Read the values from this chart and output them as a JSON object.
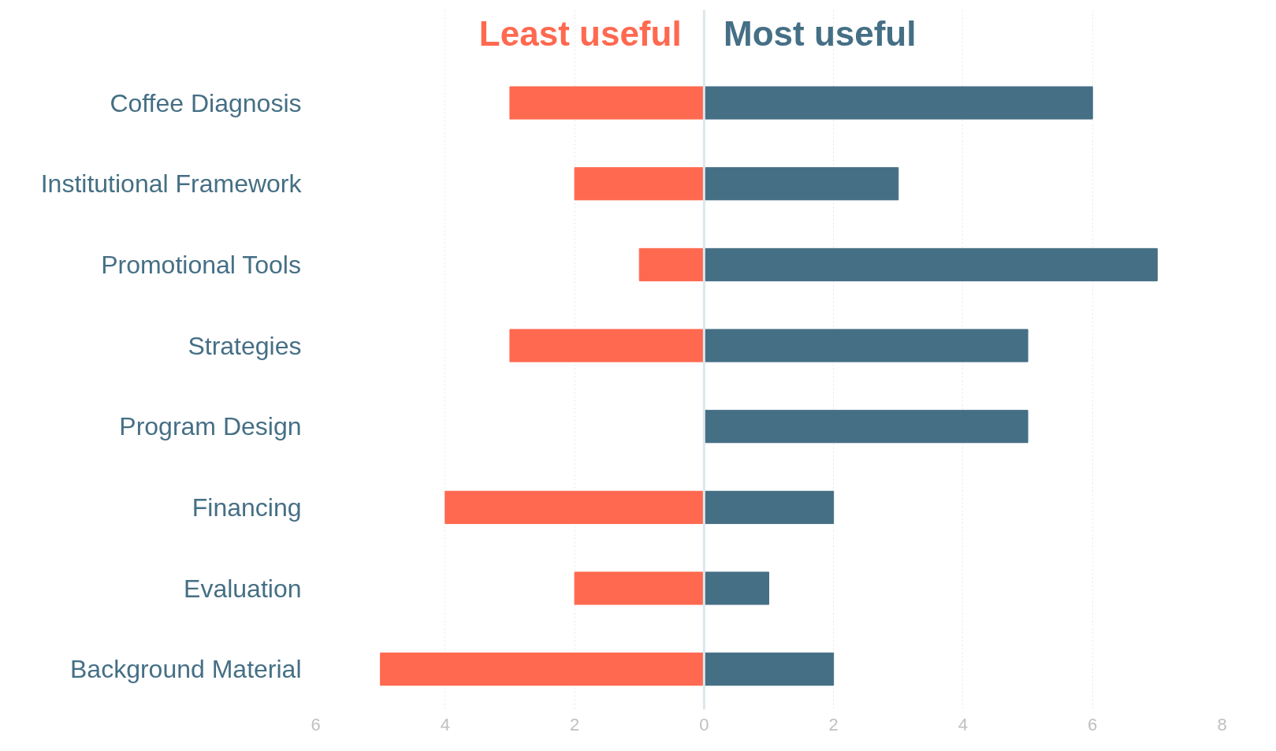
{
  "chart_data": {
    "type": "bar",
    "orientation": "horizontal",
    "categories": [
      "Coffee Diagnosis",
      "Institutional Framework",
      "Promotional Tools",
      "Strategies",
      "Program Design",
      "Financing",
      "Evaluation",
      "Background Material"
    ],
    "series": [
      {
        "name": "Least useful",
        "color": "#ff6950",
        "values": [
          -3,
          -2,
          -1,
          -3,
          0,
          -4,
          -2,
          -5
        ]
      },
      {
        "name": "Most useful",
        "color": "#456f85",
        "values": [
          6,
          3,
          7,
          5,
          5,
          2,
          1,
          2
        ]
      }
    ],
    "xlim": [
      -6,
      8
    ],
    "xticks": [
      {
        "value": -6,
        "label": "6"
      },
      {
        "value": -4,
        "label": "4"
      },
      {
        "value": -2,
        "label": "2"
      },
      0,
      2,
      4,
      6,
      8
    ],
    "ref_lines": [
      {
        "axis": "x",
        "value": 0,
        "color": "#dde6ec"
      }
    ],
    "grid": "x",
    "stacked": true
  }
}
